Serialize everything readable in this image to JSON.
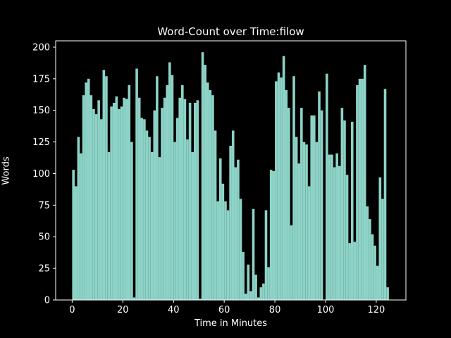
{
  "window": {
    "background_color": "#000000",
    "text_color": "#ffffff"
  },
  "chart_data": {
    "type": "bar",
    "title": "Word-Count over Time:filow",
    "xlabel": "Time in Minutes",
    "ylabel": "Words",
    "bar_color": "#8dd3c7",
    "axis_color": "#ffffff",
    "xlim": [
      -6.5,
      131.7
    ],
    "ylim": [
      0,
      205
    ],
    "xticks": [
      0,
      20,
      40,
      60,
      80,
      100,
      120
    ],
    "yticks": [
      0,
      25,
      50,
      75,
      100,
      125,
      150,
      175,
      200
    ],
    "grid": false,
    "legend": null,
    "x_start_minute": 0,
    "values": [
      103,
      90,
      129,
      116,
      162,
      172,
      175,
      162,
      151,
      147,
      158,
      143,
      182,
      177,
      117,
      153,
      156,
      161,
      151,
      153,
      160,
      159,
      170,
      125,
      2,
      183,
      160,
      144,
      143,
      134,
      129,
      117,
      150,
      177,
      113,
      152,
      160,
      170,
      188,
      178,
      125,
      144,
      160,
      170,
      159,
      127,
      156,
      117,
      156,
      158,
      1,
      196,
      186,
      172,
      166,
      162,
      134,
      78,
      112,
      92,
      78,
      71,
      122,
      134,
      105,
      111,
      80,
      38,
      5,
      28,
      7,
      72,
      20,
      2,
      10,
      13,
      71,
      26,
      103,
      102,
      173,
      180,
      176,
      193,
      166,
      152,
      59,
      177,
      129,
      108,
      152,
      125,
      123,
      90,
      146,
      146,
      125,
      165,
      150,
      0,
      179,
      115,
      115,
      105,
      116,
      106,
      152,
      142,
      99,
      45,
      141,
      46,
      170,
      175,
      175,
      186,
      74,
      64,
      52,
      43,
      27,
      97,
      80,
      167,
      10
    ]
  }
}
